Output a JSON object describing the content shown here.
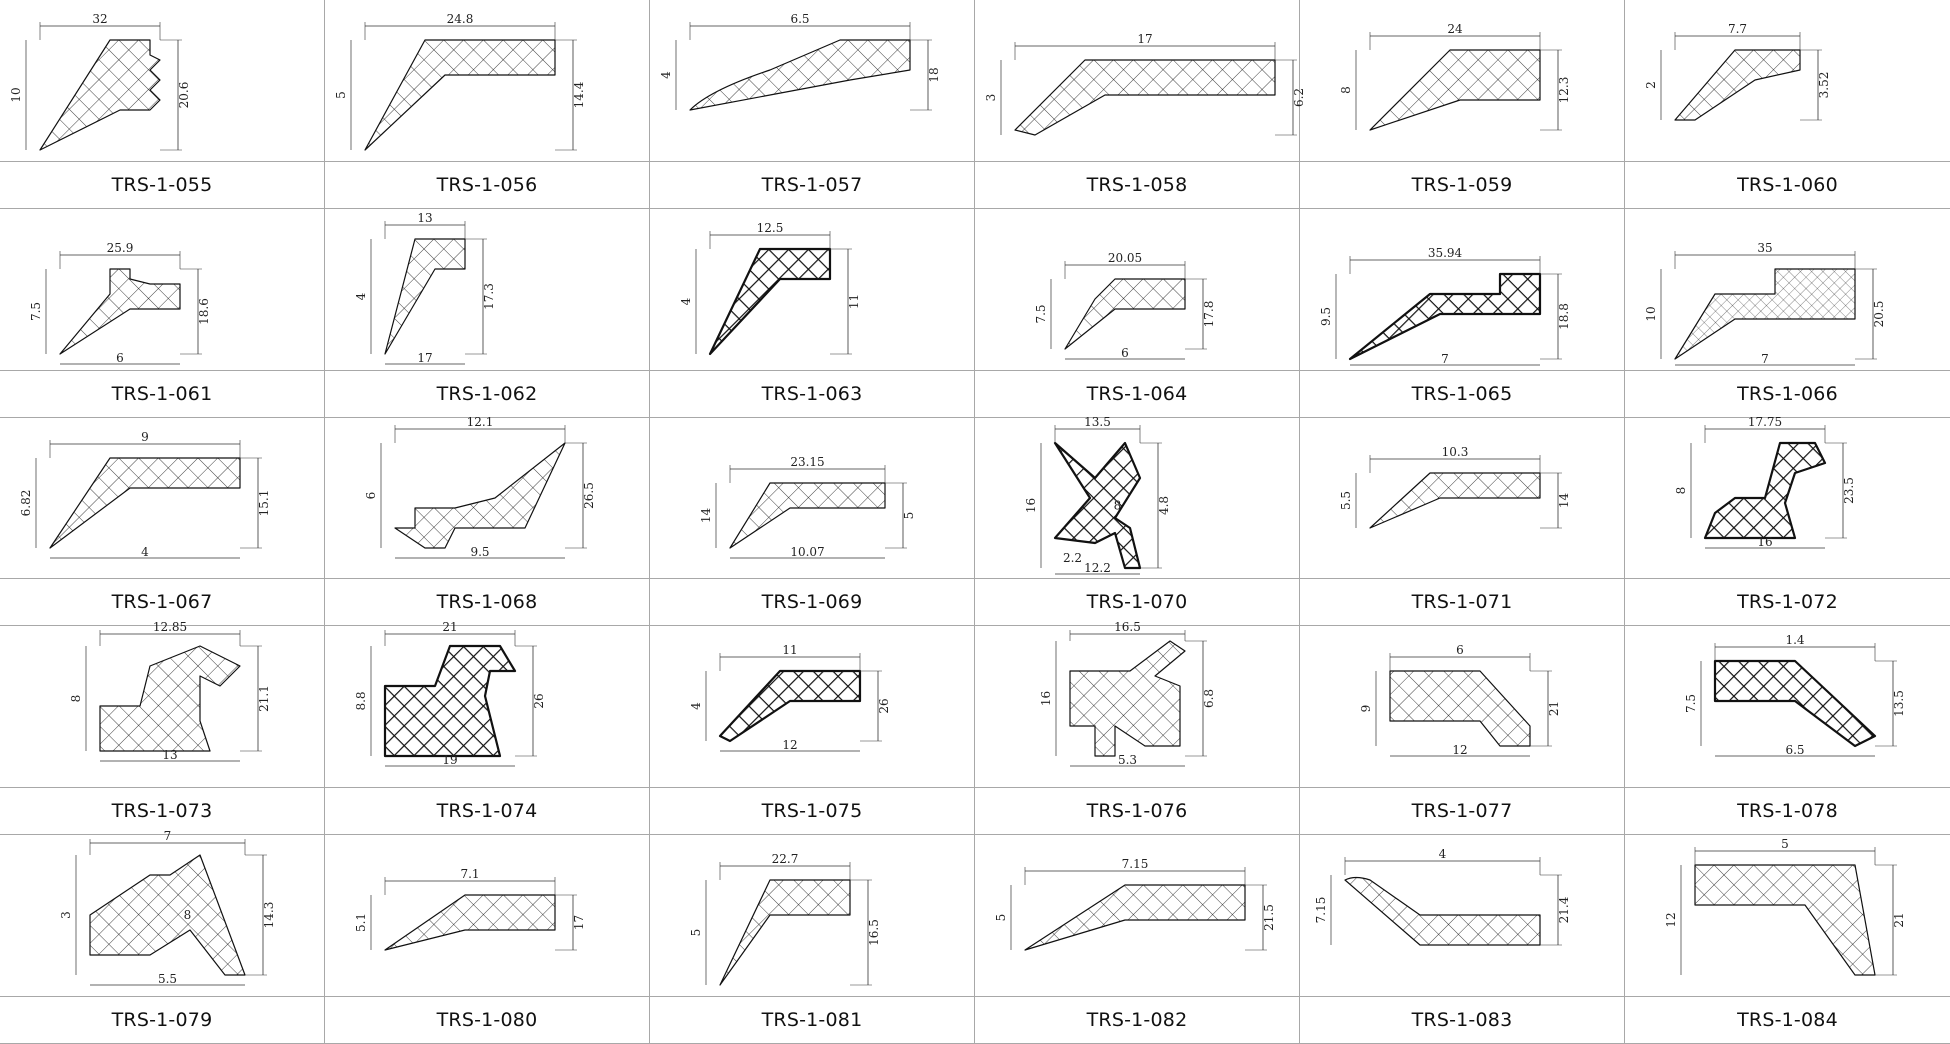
{
  "items": [
    {
      "code": "TRS-1-055",
      "dims": [
        "32",
        "10",
        "20.6"
      ],
      "hatch": "normal"
    },
    {
      "code": "TRS-1-056",
      "dims": [
        "24.8",
        "5",
        "14.4"
      ],
      "hatch": "normal"
    },
    {
      "code": "TRS-1-057",
      "dims": [
        "6.5",
        "4",
        "18"
      ],
      "hatch": "normal"
    },
    {
      "code": "TRS-1-058",
      "dims": [
        "17",
        "3",
        "6.2"
      ],
      "hatch": "normal"
    },
    {
      "code": "TRS-1-059",
      "dims": [
        "24",
        "8",
        "12.3"
      ],
      "hatch": "normal"
    },
    {
      "code": "TRS-1-060",
      "dims": [
        "7.7",
        "2",
        "3.52"
      ],
      "hatch": "normal"
    },
    {
      "code": "TRS-1-061",
      "dims": [
        "25.9",
        "7.5",
        "6",
        "18.6"
      ],
      "hatch": "normal"
    },
    {
      "code": "TRS-1-062",
      "dims": [
        "13",
        "4",
        "17",
        "17.3"
      ],
      "hatch": "normal"
    },
    {
      "code": "TRS-1-063",
      "dims": [
        "12.5",
        "4",
        "11"
      ],
      "hatch": "bold"
    },
    {
      "code": "TRS-1-064",
      "dims": [
        "20.05",
        "7.5",
        "6",
        "17.8"
      ],
      "hatch": "normal"
    },
    {
      "code": "TRS-1-065",
      "dims": [
        "35.94",
        "9.5",
        "7",
        "18.8"
      ],
      "hatch": "bold"
    },
    {
      "code": "TRS-1-066",
      "dims": [
        "35",
        "10",
        "7",
        "20.5"
      ],
      "hatch": "fine"
    },
    {
      "code": "TRS-1-067",
      "dims": [
        "9",
        "6.82",
        "4",
        "15.1"
      ],
      "hatch": "normal"
    },
    {
      "code": "TRS-1-068",
      "dims": [
        "12.1",
        "6",
        "9.5",
        "26.5"
      ],
      "hatch": "normal"
    },
    {
      "code": "TRS-1-069",
      "dims": [
        "23.15",
        "14",
        "10.07",
        "5"
      ],
      "hatch": "normal"
    },
    {
      "code": "TRS-1-070",
      "dims": [
        "13.5",
        "16",
        "12.2",
        "8",
        "2.2",
        "4.8"
      ],
      "hatch": "bold"
    },
    {
      "code": "TRS-1-071",
      "dims": [
        "10.3",
        "5.5",
        "14"
      ],
      "hatch": "normal"
    },
    {
      "code": "TRS-1-072",
      "dims": [
        "17.75",
        "8",
        "16",
        "23.5"
      ],
      "hatch": "bold"
    },
    {
      "code": "TRS-1-073",
      "dims": [
        "12.85",
        "8",
        "13",
        "21.1"
      ],
      "hatch": "normal"
    },
    {
      "code": "TRS-1-074",
      "dims": [
        "21",
        "8.8",
        "19",
        "26"
      ],
      "hatch": "bold"
    },
    {
      "code": "TRS-1-075",
      "dims": [
        "11",
        "4",
        "12",
        "26"
      ],
      "hatch": "bold"
    },
    {
      "code": "TRS-1-076",
      "dims": [
        "16.5",
        "16",
        "5.3",
        "6.8"
      ],
      "hatch": "normal"
    },
    {
      "code": "TRS-1-077",
      "dims": [
        "6",
        "9",
        "12",
        "21"
      ],
      "hatch": "normal"
    },
    {
      "code": "TRS-1-078",
      "dims": [
        "1.4",
        "7.5",
        "6.5",
        "13.5"
      ],
      "hatch": "bold"
    },
    {
      "code": "TRS-1-079",
      "dims": [
        "7",
        "3",
        "5.5",
        "8",
        "14.3"
      ],
      "hatch": "normal"
    },
    {
      "code": "TRS-1-080",
      "dims": [
        "7.1",
        "5.1",
        "17"
      ],
      "hatch": "normal"
    },
    {
      "code": "TRS-1-081",
      "dims": [
        "22.7",
        "5",
        "16.5"
      ],
      "hatch": "normal"
    },
    {
      "code": "TRS-1-082",
      "dims": [
        "7.15",
        "5",
        "21.5"
      ],
      "hatch": "normal"
    },
    {
      "code": "TRS-1-083",
      "dims": [
        "4",
        "7.15",
        "21.4"
      ],
      "hatch": "normal"
    },
    {
      "code": "TRS-1-084",
      "dims": [
        "5",
        "12",
        "21"
      ],
      "hatch": "normal"
    }
  ]
}
